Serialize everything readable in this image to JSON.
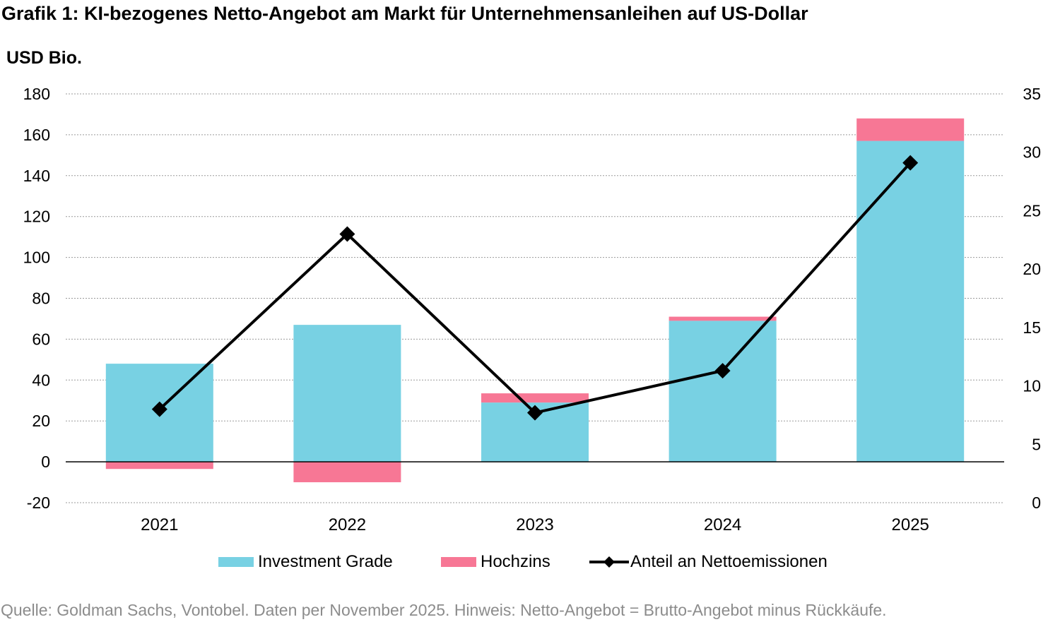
{
  "title": "Grafik 1: KI-bezogenes Netto-Angebot am Markt für Unternehmensanleihen auf US-Dollar",
  "unit_label": "USD Bio.",
  "source": "Quelle: Goldman Sachs, Vontobel. Daten per November 2025. Hinweis: Netto-Angebot = Brutto-Angebot minus Rückkäufe.",
  "chart_data": {
    "type": "bar",
    "stacked": true,
    "categories": [
      "2021",
      "2022",
      "2023",
      "2024",
      "2025"
    ],
    "series": [
      {
        "name": "Investment Grade",
        "type": "bar",
        "axis": "left",
        "color": "#78d1e3",
        "values": [
          48,
          67,
          29,
          69,
          157
        ]
      },
      {
        "name": "Hochzins",
        "type": "bar",
        "axis": "left",
        "color": "#f77795",
        "values": [
          -3.5,
          -10,
          4.5,
          2,
          11
        ]
      },
      {
        "name": "Anteil an Nettoemissionen",
        "type": "line",
        "axis": "right",
        "color": "#000000",
        "marker": "diamond",
        "values": [
          8,
          23,
          7.7,
          11.3,
          29.1
        ]
      }
    ],
    "ylim": [
      -20,
      180
    ],
    "yticks": [
      "-20",
      "0",
      "20",
      "40",
      "60",
      "80",
      "100",
      "120",
      "140",
      "160",
      "180"
    ],
    "y2lim": [
      0,
      35
    ],
    "y2ticks": [
      "0",
      "5",
      "10",
      "15",
      "20",
      "25",
      "30",
      "35"
    ],
    "grid": true,
    "legend_position": "bottom"
  }
}
